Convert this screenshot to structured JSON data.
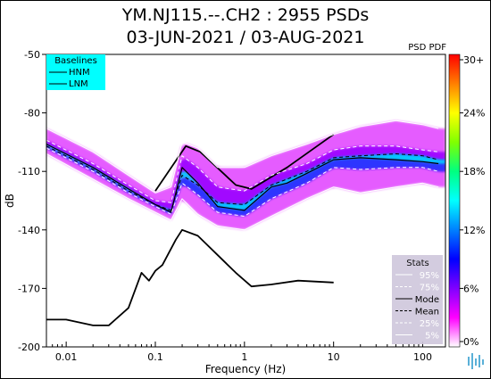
{
  "header": {
    "title": "YM.NJ115.--.CH2 : 2955 PSDs",
    "subtitle": "03-JUN-2021 / 03-AUG-2021"
  },
  "chart_data": {
    "type": "heatmap",
    "xlabel": "Frequency (Hz)",
    "ylabel": "dB",
    "xscale": "log",
    "xlim": [
      0.006,
      180
    ],
    "ylim": [
      -200,
      -50
    ],
    "xticks": [
      {
        "v": 0.01,
        "label": "0.01"
      },
      {
        "v": 0.1,
        "label": "0.1"
      },
      {
        "v": 1,
        "label": "1"
      },
      {
        "v": 10,
        "label": "10"
      },
      {
        "v": 100,
        "label": "100"
      }
    ],
    "yticks": [
      {
        "v": -50,
        "label": "-50"
      },
      {
        "v": -80,
        "label": "-80"
      },
      {
        "v": -110,
        "label": "-110"
      },
      {
        "v": -140,
        "label": "-140"
      },
      {
        "v": -170,
        "label": "-170"
      },
      {
        "v": -200,
        "label": "-200"
      }
    ],
    "colorbar": {
      "title": "PSD PDF",
      "ticks": [
        "30+",
        "24%",
        "18%",
        "12%",
        "6%",
        "0%"
      ],
      "colors": [
        "#ff0000",
        "#ff7f00",
        "#ffff00",
        "#80ff00",
        "#00ff80",
        "#00ffff",
        "#0080ff",
        "#0000ff",
        "#8000ff",
        "#ff00ff",
        "#ffffff"
      ]
    },
    "baselines_legend": {
      "title": "Baselines",
      "items": [
        "HNM",
        "LNM"
      ],
      "background": "#00ffff"
    },
    "stats_legend": {
      "title": "Stats",
      "items": [
        {
          "label": "95%",
          "style": "white-solid"
        },
        {
          "label": "75%",
          "style": "white-dash"
        },
        {
          "label": "Mode",
          "style": "black-solid"
        },
        {
          "label": "Mean",
          "style": "black-dash"
        },
        {
          "label": "25%",
          "style": "white-dash"
        },
        {
          "label": "5%",
          "style": "white-solid"
        }
      ]
    },
    "series": [
      {
        "name": "HNM",
        "x": [
          0.1,
          0.22,
          0.32,
          0.8,
          1.2,
          3.0,
          10.0
        ],
        "y": [
          -120,
          -97,
          -100,
          -117,
          -119,
          -108,
          -91
        ]
      },
      {
        "name": "LNM",
        "x": [
          0.006,
          0.01,
          0.02,
          0.03,
          0.05,
          0.07,
          0.085,
          0.1,
          0.12,
          0.17,
          0.2,
          0.3,
          0.8,
          1.2,
          2.0,
          4.0,
          10.0
        ],
        "y": [
          -186,
          -186,
          -189,
          -189,
          -180,
          -162,
          -166,
          -161,
          -158,
          -145,
          -140,
          -143,
          -162,
          -169,
          -168,
          -166,
          -167
        ]
      },
      {
        "name": "Mode",
        "x": [
          0.006,
          0.02,
          0.05,
          0.1,
          0.15,
          0.2,
          0.3,
          0.5,
          1.0,
          2.0,
          3.0,
          5.0,
          10.0,
          20.0,
          50.0,
          100.0,
          150.0
        ],
        "y": [
          -96,
          -108,
          -119,
          -127,
          -131,
          -108,
          -116,
          -128,
          -130,
          -118,
          -116,
          -111,
          -104,
          -103,
          -104,
          -105,
          -106
        ]
      },
      {
        "name": "Mean",
        "x": [
          0.006,
          0.02,
          0.05,
          0.1,
          0.15,
          0.2,
          0.3,
          0.5,
          1.0,
          2.0,
          3.0,
          5.0,
          10.0,
          20.0,
          50.0,
          100.0,
          150.0
        ],
        "y": [
          -97,
          -109,
          -120,
          -127,
          -130,
          -112,
          -117,
          -126,
          -127,
          -117,
          -114,
          -110,
          -103,
          -102,
          -101,
          -102,
          -104
        ]
      },
      {
        "name": "95%",
        "x": [
          0.006,
          0.02,
          0.05,
          0.1,
          0.15,
          0.2,
          0.3,
          0.5,
          1.0,
          2.0,
          5.0,
          10.0,
          20.0,
          50.0,
          100.0,
          150.0
        ],
        "y": [
          -88,
          -100,
          -112,
          -121,
          -118,
          -95,
          -98,
          -108,
          -108,
          -102,
          -96,
          -91,
          -87,
          -84,
          -86,
          -88
        ]
      },
      {
        "name": "75%",
        "x": [
          0.006,
          0.02,
          0.05,
          0.1,
          0.15,
          0.2,
          0.3,
          0.5,
          1.0,
          2.0,
          5.0,
          10.0,
          20.0,
          50.0,
          100.0,
          150.0
        ],
        "y": [
          -94,
          -106,
          -117,
          -125,
          -126,
          -102,
          -108,
          -118,
          -120,
          -112,
          -106,
          -99,
          -97,
          -97,
          -99,
          -100
        ]
      },
      {
        "name": "25%",
        "x": [
          0.006,
          0.02,
          0.05,
          0.1,
          0.15,
          0.2,
          0.3,
          0.5,
          1.0,
          2.0,
          5.0,
          10.0,
          20.0,
          50.0,
          100.0,
          150.0
        ],
        "y": [
          -98,
          -110,
          -121,
          -128,
          -132,
          -116,
          -122,
          -131,
          -133,
          -124,
          -116,
          -108,
          -109,
          -108,
          -108,
          -110
        ]
      },
      {
        "name": "5%",
        "x": [
          0.006,
          0.02,
          0.05,
          0.1,
          0.15,
          0.2,
          0.3,
          0.5,
          1.0,
          2.0,
          5.0,
          10.0,
          20.0,
          50.0,
          100.0,
          150.0
        ],
        "y": [
          -101,
          -114,
          -124,
          -131,
          -135,
          -124,
          -132,
          -138,
          -140,
          -133,
          -124,
          -118,
          -121,
          -118,
          -116,
          -118
        ]
      }
    ]
  }
}
